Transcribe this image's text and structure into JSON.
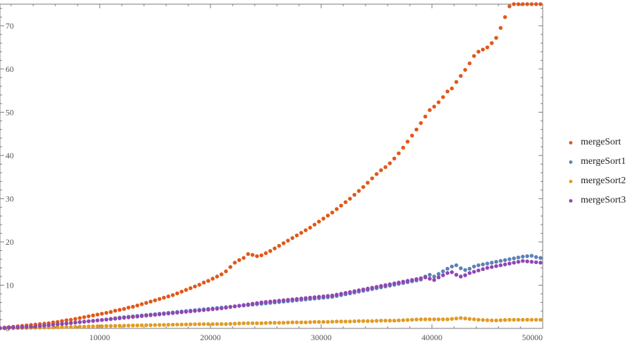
{
  "chart_data": {
    "type": "scatter",
    "xlim": [
      1000,
      50000
    ],
    "ylim": [
      0,
      75
    ],
    "x_ticks": [
      10000,
      20000,
      30000,
      40000,
      50000
    ],
    "y_ticks": [
      0,
      10,
      20,
      30,
      40,
      50,
      60,
      70
    ],
    "grid": false,
    "legend_position": "right",
    "x": [
      1000,
      1400,
      1800,
      2200,
      2600,
      3000,
      3400,
      3800,
      4200,
      4600,
      5000,
      5400,
      5800,
      6200,
      6600,
      7000,
      7400,
      7800,
      8200,
      8600,
      9000,
      9400,
      9800,
      10200,
      10600,
      11000,
      11400,
      11800,
      12200,
      12600,
      13000,
      13400,
      13800,
      14200,
      14600,
      15000,
      15400,
      15800,
      16200,
      16600,
      17000,
      17400,
      17800,
      18200,
      18600,
      19000,
      19400,
      19800,
      20200,
      20600,
      21000,
      21400,
      21800,
      22200,
      22600,
      23000,
      23400,
      23800,
      24200,
      24600,
      25000,
      25400,
      25800,
      26200,
      26600,
      27000,
      27400,
      27800,
      28200,
      28600,
      29000,
      29400,
      29800,
      30200,
      30600,
      31000,
      31400,
      31800,
      32200,
      32600,
      33000,
      33400,
      33800,
      34200,
      34600,
      35000,
      35400,
      35800,
      36200,
      36600,
      37000,
      37400,
      37800,
      38200,
      38600,
      39000,
      39400,
      39800,
      40200,
      40600,
      41000,
      41400,
      41800,
      42200,
      42600,
      43000,
      43400,
      43800,
      44200,
      44600,
      45000,
      45400,
      45800,
      46200,
      46600,
      47000,
      47400,
      47800,
      48200,
      48600,
      49000,
      49400,
      49800
    ],
    "series": [
      {
        "name": "mergeSort",
        "color": "#E1581A",
        "values": [
          0.1,
          0.2,
          0.3,
          0.4,
          0.5,
          0.6,
          0.7,
          0.8,
          0.9,
          1.0,
          1.1,
          1.2,
          1.4,
          1.5,
          1.7,
          1.9,
          2.0,
          2.2,
          2.4,
          2.6,
          2.8,
          3.0,
          3.2,
          3.4,
          3.6,
          3.8,
          4.1,
          4.3,
          4.5,
          4.8,
          5.0,
          5.3,
          5.6,
          5.9,
          6.2,
          6.5,
          6.8,
          7.1,
          7.4,
          7.7,
          8.1,
          8.5,
          8.9,
          9.3,
          9.7,
          10.1,
          10.6,
          11.0,
          11.5,
          12.0,
          12.5,
          13.2,
          14.2,
          15.2,
          15.8,
          16.3,
          17.2,
          17.0,
          16.7,
          16.9,
          17.4,
          17.9,
          18.5,
          19.1,
          19.7,
          20.3,
          20.9,
          21.5,
          22.1,
          22.7,
          23.3,
          24.0,
          24.7,
          25.4,
          26.1,
          26.8,
          27.6,
          28.4,
          29.2,
          30.0,
          30.9,
          31.8,
          32.7,
          33.7,
          34.7,
          35.7,
          36.6,
          37.3,
          38.2,
          39.3,
          40.5,
          41.8,
          43.2,
          44.6,
          46.0,
          47.5,
          49.0,
          50.5,
          51.3,
          52.3,
          53.5,
          54.8,
          55.5,
          57.0,
          58.4,
          59.8,
          61.3,
          63.0,
          64.0,
          64.5,
          65.0,
          66.0,
          67.2,
          69.5,
          72.0,
          74.5,
          75.0,
          75.0,
          75.0,
          75.0,
          75.0,
          75.0,
          75.0
        ]
      },
      {
        "name": "mergeSort1",
        "color": "#5E81B5",
        "values": [
          0.05,
          0.1,
          0.15,
          0.2,
          0.25,
          0.3,
          0.35,
          0.4,
          0.45,
          0.55,
          0.65,
          0.75,
          0.85,
          0.95,
          1.05,
          1.15,
          1.25,
          1.35,
          1.45,
          1.55,
          1.65,
          1.75,
          1.85,
          1.95,
          2.05,
          2.2,
          2.35,
          2.5,
          2.6,
          2.7,
          2.8,
          2.9,
          3.0,
          3.1,
          3.2,
          3.3,
          3.4,
          3.5,
          3.6,
          3.7,
          3.8,
          3.9,
          4.0,
          4.1,
          4.2,
          4.3,
          4.4,
          4.5,
          4.6,
          4.7,
          4.8,
          4.9,
          5.0,
          5.1,
          5.2,
          5.3,
          5.4,
          5.5,
          5.6,
          5.7,
          5.8,
          5.9,
          6.0,
          6.1,
          6.2,
          6.3,
          6.4,
          6.5,
          6.6,
          6.7,
          6.8,
          6.9,
          7.0,
          7.1,
          7.2,
          7.3,
          7.5,
          7.7,
          7.9,
          8.1,
          8.3,
          8.5,
          8.7,
          8.9,
          9.1,
          9.3,
          9.5,
          9.7,
          9.9,
          10.1,
          10.3,
          10.5,
          10.7,
          10.9,
          11.1,
          11.3,
          12.0,
          12.4,
          12.0,
          12.6,
          13.2,
          13.8,
          14.3,
          14.6,
          13.9,
          13.5,
          13.8,
          14.3,
          14.6,
          14.8,
          15.0,
          15.2,
          15.4,
          15.6,
          15.8,
          16.0,
          16.2,
          16.4,
          16.6,
          16.7,
          16.8,
          16.5,
          16.3
        ]
      },
      {
        "name": "mergeSort2",
        "color": "#E19C24",
        "values": [
          0.02,
          0.03,
          0.05,
          0.06,
          0.08,
          0.1,
          0.12,
          0.14,
          0.16,
          0.18,
          0.2,
          0.22,
          0.25,
          0.27,
          0.3,
          0.32,
          0.35,
          0.37,
          0.4,
          0.42,
          0.45,
          0.47,
          0.5,
          0.52,
          0.55,
          0.57,
          0.6,
          0.62,
          0.64,
          0.66,
          0.68,
          0.7,
          0.72,
          0.74,
          0.76,
          0.78,
          0.8,
          0.82,
          0.84,
          0.86,
          0.88,
          0.9,
          0.92,
          0.94,
          0.96,
          0.98,
          1.0,
          1.0,
          1.0,
          1.0,
          1.0,
          1.0,
          1.05,
          1.1,
          1.15,
          1.2,
          1.2,
          1.2,
          1.2,
          1.2,
          1.25,
          1.3,
          1.3,
          1.3,
          1.3,
          1.35,
          1.4,
          1.4,
          1.4,
          1.4,
          1.45,
          1.5,
          1.5,
          1.5,
          1.5,
          1.55,
          1.6,
          1.6,
          1.6,
          1.6,
          1.65,
          1.7,
          1.7,
          1.7,
          1.7,
          1.75,
          1.8,
          1.8,
          1.8,
          1.8,
          1.85,
          1.9,
          1.95,
          2.0,
          2.05,
          2.1,
          2.1,
          2.1,
          2.1,
          2.1,
          2.1,
          2.1,
          2.2,
          2.3,
          2.4,
          2.3,
          2.2,
          2.1,
          2.0,
          1.95,
          1.9,
          1.85,
          1.85,
          1.9,
          1.95,
          2.0,
          2.0,
          2.0,
          2.0,
          2.0,
          2.0,
          2.0,
          2.0
        ]
      },
      {
        "name": "mergeSort3",
        "color": "#8F47B3",
        "values": [
          0.05,
          0.1,
          0.15,
          0.2,
          0.25,
          0.3,
          0.35,
          0.4,
          0.45,
          0.55,
          0.65,
          0.75,
          0.85,
          0.95,
          1.05,
          1.15,
          1.25,
          1.35,
          1.45,
          1.55,
          1.65,
          1.75,
          1.85,
          1.95,
          2.05,
          2.15,
          2.25,
          2.35,
          2.45,
          2.55,
          2.65,
          2.75,
          2.85,
          2.95,
          3.05,
          3.15,
          3.25,
          3.35,
          3.45,
          3.55,
          3.65,
          3.75,
          3.85,
          3.95,
          4.05,
          4.15,
          4.25,
          4.35,
          4.45,
          4.55,
          4.65,
          4.8,
          4.95,
          5.1,
          5.25,
          5.4,
          5.55,
          5.7,
          5.85,
          6.0,
          6.1,
          6.2,
          6.3,
          6.4,
          6.5,
          6.6,
          6.7,
          6.8,
          6.9,
          7.0,
          7.1,
          7.2,
          7.3,
          7.4,
          7.5,
          7.6,
          7.8,
          8.0,
          8.2,
          8.4,
          8.6,
          8.8,
          9.0,
          9.2,
          9.4,
          9.6,
          9.8,
          10.0,
          10.2,
          10.4,
          10.6,
          10.8,
          11.0,
          11.2,
          11.4,
          11.6,
          11.8,
          11.5,
          11.2,
          11.8,
          12.3,
          12.8,
          13.0,
          12.4,
          12.0,
          12.3,
          12.8,
          13.1,
          13.4,
          13.7,
          14.0,
          14.2,
          14.4,
          14.6,
          14.8,
          15.0,
          15.2,
          15.4,
          15.6,
          15.5,
          15.4,
          15.3,
          15.2
        ]
      }
    ]
  }
}
